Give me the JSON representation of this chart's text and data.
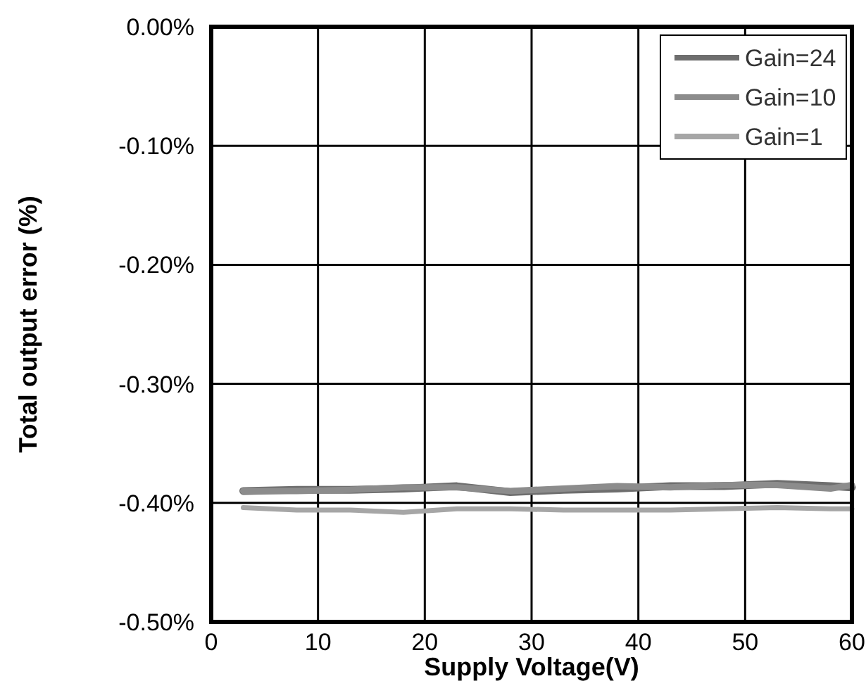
{
  "chart_data": {
    "type": "line",
    "xlabel": "Supply Voltage(V)",
    "ylabel": "Total output error (%)",
    "x": [
      3,
      8,
      13,
      18,
      23,
      28,
      33,
      38,
      43,
      48,
      53,
      58,
      60
    ],
    "series": [
      {
        "name": "Gain=24",
        "color": "#6e6e6e",
        "values": [
          -0.39,
          -0.389,
          -0.389,
          -0.388,
          -0.386,
          -0.391,
          -0.389,
          -0.388,
          -0.386,
          -0.386,
          -0.384,
          -0.386,
          -0.387
        ]
      },
      {
        "name": "Gain=10",
        "color": "#8c8c8c",
        "values": [
          -0.39,
          -0.39,
          -0.389,
          -0.387,
          -0.387,
          -0.39,
          -0.388,
          -0.386,
          -0.387,
          -0.385,
          -0.385,
          -0.388,
          -0.385
        ]
      },
      {
        "name": "Gain=1",
        "color": "#a6a6a6",
        "values": [
          -0.404,
          -0.406,
          -0.406,
          -0.408,
          -0.405,
          -0.405,
          -0.406,
          -0.406,
          -0.406,
          -0.405,
          -0.404,
          -0.405,
          -0.405
        ]
      }
    ],
    "xlim": [
      0,
      60
    ],
    "xticks": [
      0,
      10,
      20,
      30,
      40,
      50,
      60
    ],
    "ylim": [
      -0.5,
      0
    ],
    "yticks": [
      {
        "value": -0.5,
        "label": "-0.50%"
      },
      {
        "value": -0.4,
        "label": "-0.40%"
      },
      {
        "value": -0.3,
        "label": "-0.30%"
      },
      {
        "value": -0.2,
        "label": "-0.20%"
      },
      {
        "value": -0.1,
        "label": "-0.10%"
      },
      {
        "value": 0,
        "label": "0.00%"
      }
    ],
    "grid": true,
    "legend": "top right",
    "marker": "none",
    "line_style": "solid"
  }
}
